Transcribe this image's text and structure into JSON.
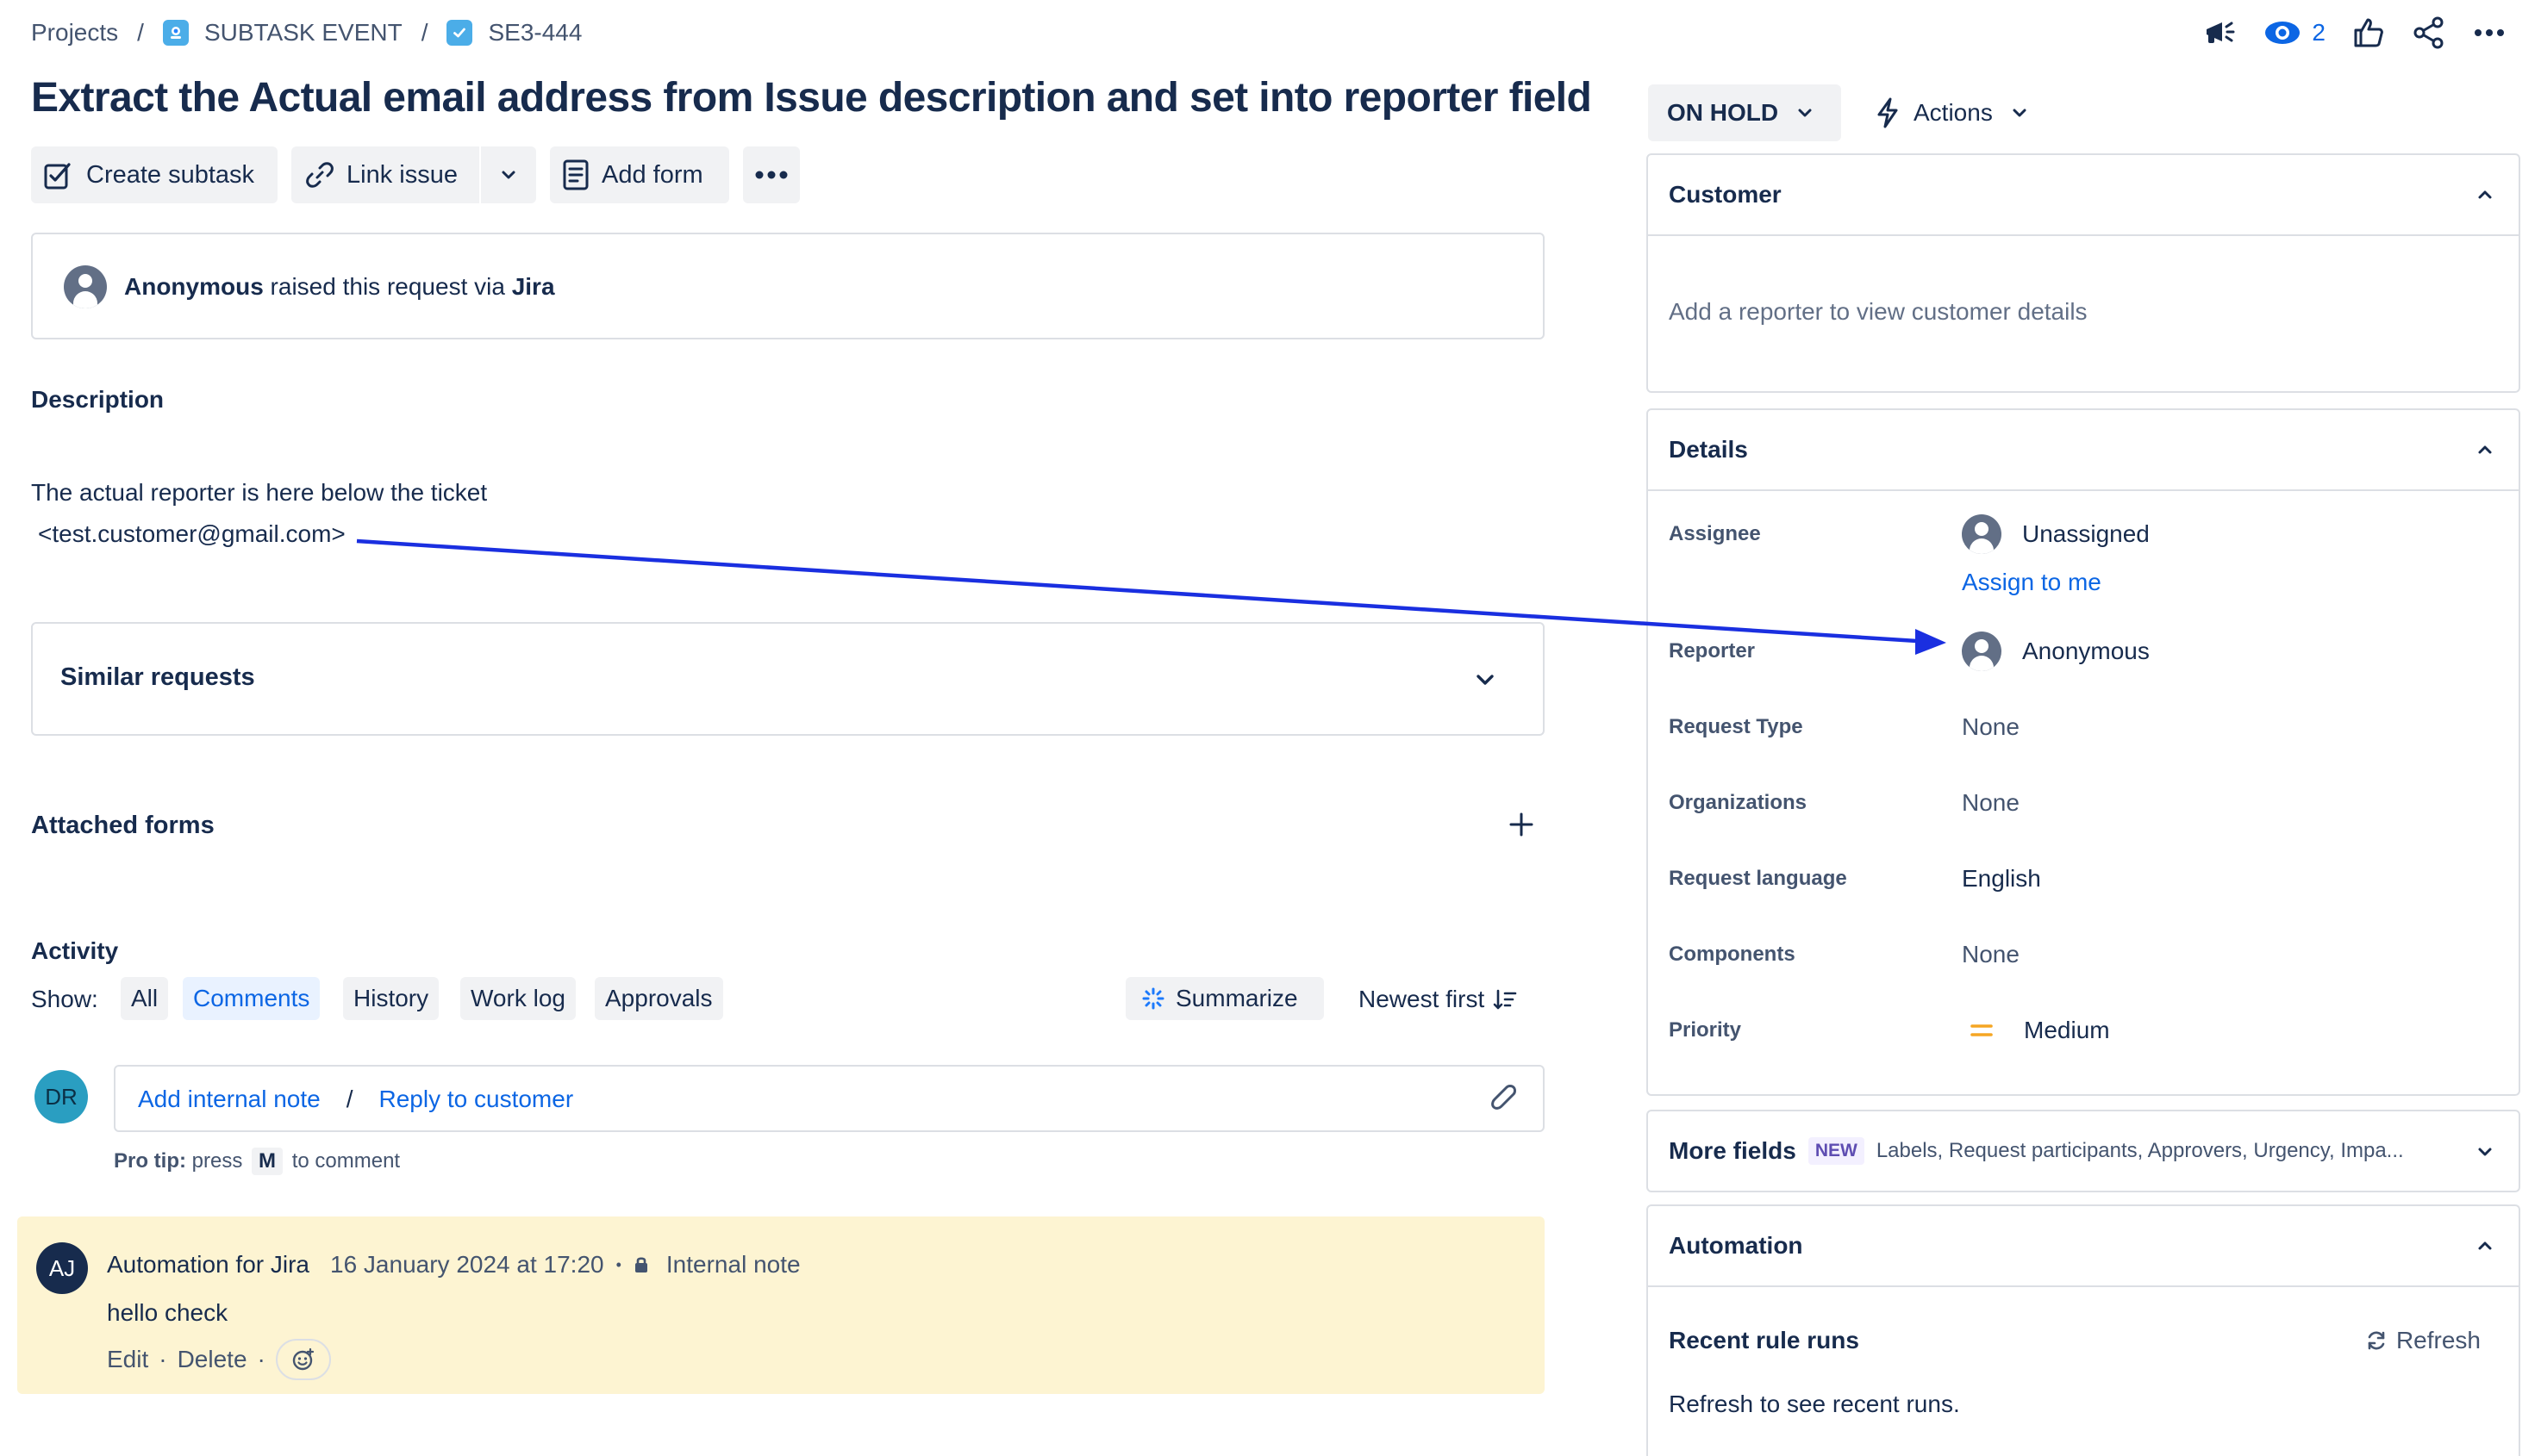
{
  "breadcrumb": {
    "projects": "Projects",
    "separator": "/",
    "project": "SUBTASK EVENT",
    "issue_key": "SE3-444"
  },
  "header": {
    "watch_count": "2",
    "icons": [
      "megaphone-icon",
      "eye-icon",
      "thumbs-up-icon",
      "share-icon",
      "more-icon"
    ]
  },
  "issue": {
    "title": "Extract the Actual email address from Issue description and set into reporter field"
  },
  "toolbar": {
    "create_subtask": "Create subtask",
    "link_issue": "Link issue",
    "add_form": "Add form"
  },
  "request": {
    "requester": "Anonymous",
    "middle": " raised this request via ",
    "channel": "Jira"
  },
  "description": {
    "heading": "Description",
    "line1": "The actual reporter is here below the ticket",
    "line2": "<test.customer@gmail.com>"
  },
  "similar": {
    "label": "Similar requests"
  },
  "attached_forms": {
    "label": "Attached forms"
  },
  "activity": {
    "heading": "Activity",
    "show_label": "Show:",
    "filters": [
      "All",
      "Comments",
      "History",
      "Work log",
      "Approvals"
    ],
    "active_filter": "Comments",
    "summarize": "Summarize",
    "sort": "Newest first"
  },
  "composer": {
    "avatar_initials": "DR",
    "add_internal_note": "Add internal note",
    "divider": "/",
    "reply_to_customer": "Reply to customer",
    "pro_tip_label": "Pro tip:",
    "pro_tip_press": " press ",
    "pro_tip_key": "M",
    "pro_tip_rest": " to comment"
  },
  "comment": {
    "avatar_initials": "AJ",
    "author": "Automation for Jira",
    "timestamp": "16 January 2024 at 17:20",
    "dot": "•",
    "visibility": "Internal note",
    "body": "hello check",
    "edit": "Edit",
    "delete": "Delete",
    "sep": "·"
  },
  "status": {
    "label": "ON HOLD",
    "actions": "Actions"
  },
  "customer_panel": {
    "heading": "Customer",
    "empty_text": "Add a reporter to view customer details"
  },
  "details_panel": {
    "heading": "Details",
    "assignee_label": "Assignee",
    "assignee_value": "Unassigned",
    "assign_to_me": "Assign to me",
    "reporter_label": "Reporter",
    "reporter_value": "Anonymous",
    "request_type_label": "Request Type",
    "request_type_value": "None",
    "organizations_label": "Organizations",
    "organizations_value": "None",
    "request_language_label": "Request language",
    "request_language_value": "English",
    "components_label": "Components",
    "components_value": "None",
    "priority_label": "Priority",
    "priority_value": "Medium"
  },
  "more_fields": {
    "heading": "More fields",
    "badge": "NEW",
    "summary": "Labels, Request participants, Approvers, Urgency, Impa..."
  },
  "automation_panel": {
    "heading": "Automation",
    "recent_runs": "Recent rule runs",
    "refresh": "Refresh",
    "empty_text": "Refresh to see recent runs."
  },
  "colors": {
    "accent_blue": "#0c66e4",
    "annotation_arrow": "#1a2fe0",
    "comment_bg": "#fdf4d2",
    "priority_medium": "#f5a623",
    "text_primary": "#172b4d",
    "text_subtle": "#44546f"
  }
}
